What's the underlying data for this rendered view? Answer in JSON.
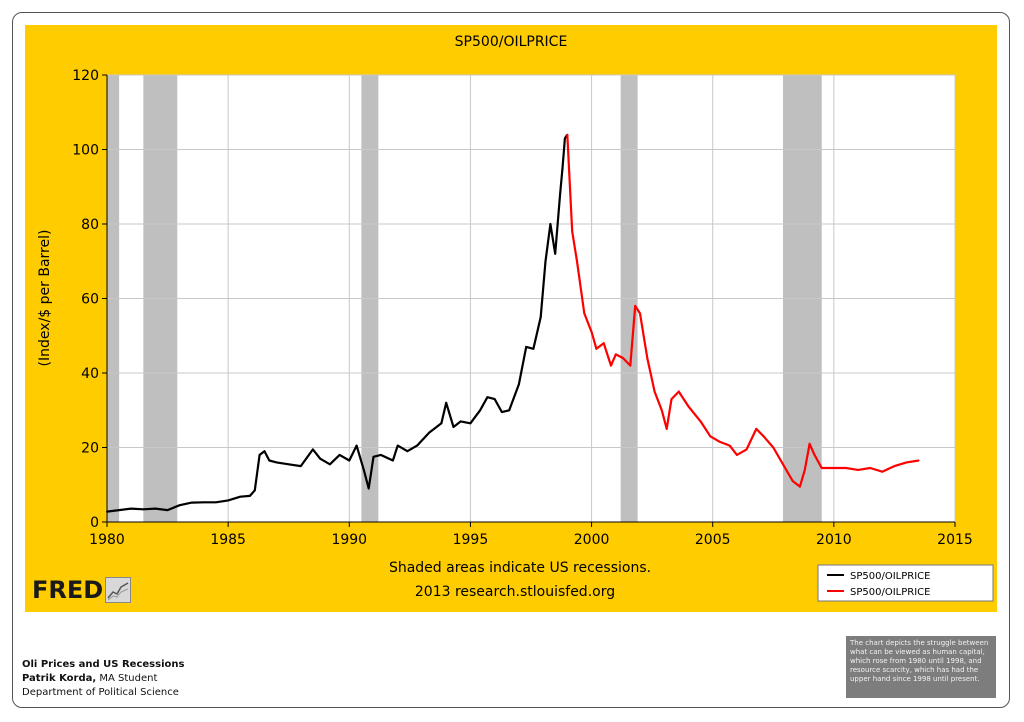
{
  "chart_data": {
    "type": "line",
    "title": "SP500/OILPRICE",
    "ylabel": "(Index/$ per Barrel)",
    "xlabel": "",
    "xlim": [
      1980,
      2015
    ],
    "ylim": [
      0,
      120
    ],
    "x_ticks": [
      "1980",
      "1985",
      "1990",
      "1995",
      "2000",
      "2005",
      "2010",
      "2015"
    ],
    "y_ticks": [
      "0",
      "20",
      "40",
      "60",
      "80",
      "100",
      "120"
    ],
    "grid": true,
    "recessions": [
      [
        1980.0,
        1980.5
      ],
      [
        1981.5,
        1982.9
      ],
      [
        1990.5,
        1991.2
      ],
      [
        2001.2,
        2001.9
      ],
      [
        2007.9,
        2009.5
      ]
    ],
    "note_line1": "Shaded areas indicate US recessions.",
    "note_line2": "2013 research.stlouisfed.org",
    "legend": [
      "SP500/OILPRICE",
      "SP500/OILPRICE"
    ],
    "series": [
      {
        "name": "SP500/OILPRICE",
        "color": "#000000",
        "x": [
          1980.0,
          1980.5,
          1981.0,
          1981.5,
          1982.0,
          1982.5,
          1983.0,
          1983.5,
          1984.0,
          1984.5,
          1985.0,
          1985.5,
          1985.9,
          1986.1,
          1986.3,
          1986.5,
          1986.7,
          1987.0,
          1987.5,
          1988.0,
          1988.5,
          1988.8,
          1989.2,
          1989.6,
          1990.0,
          1990.3,
          1990.6,
          1990.8,
          1991.0,
          1991.3,
          1991.8,
          1992.0,
          1992.4,
          1992.8,
          1993.3,
          1993.8,
          1994.0,
          1994.3,
          1994.6,
          1995.0,
          1995.4,
          1995.7,
          1996.0,
          1996.3,
          1996.6,
          1997.0,
          1997.3,
          1997.6,
          1997.9,
          1998.1,
          1998.3,
          1998.5,
          1998.7,
          1998.8,
          1998.9,
          1999.0
        ],
        "values": [
          2.8,
          3.2,
          3.6,
          3.4,
          3.6,
          3.2,
          4.5,
          5.2,
          5.3,
          5.3,
          5.8,
          6.8,
          7.0,
          8.5,
          18.0,
          19.0,
          16.5,
          16.0,
          15.5,
          15.0,
          19.5,
          17.0,
          15.5,
          18.0,
          16.5,
          20.5,
          14.0,
          9.0,
          17.5,
          18.0,
          16.5,
          20.5,
          19.0,
          20.5,
          24.0,
          26.5,
          32.0,
          25.5,
          27.0,
          26.5,
          30.0,
          33.5,
          33.0,
          29.5,
          30.0,
          37.0,
          47.0,
          46.5,
          55.0,
          70.0,
          80.0,
          72.0,
          88.0,
          95.0,
          103.0,
          104.0
        ]
      },
      {
        "name": "SP500/OILPRICE",
        "color": "#ff0000",
        "x": [
          1999.0,
          1999.2,
          1999.4,
          1999.7,
          2000.0,
          2000.2,
          2000.5,
          2000.8,
          2001.0,
          2001.3,
          2001.6,
          2001.8,
          2002.0,
          2002.3,
          2002.6,
          2002.9,
          2003.1,
          2003.3,
          2003.6,
          2004.0,
          2004.5,
          2004.9,
          2005.3,
          2005.7,
          2006.0,
          2006.4,
          2006.8,
          2007.1,
          2007.5,
          2007.9,
          2008.3,
          2008.6,
          2008.8,
          2009.0,
          2009.2,
          2009.5,
          2010.0,
          2010.5,
          2011.0,
          2011.5,
          2012.0,
          2012.5,
          2013.0,
          2013.5
        ],
        "values": [
          104.0,
          78.0,
          70.0,
          56.0,
          51.0,
          46.5,
          48.0,
          42.0,
          45.0,
          44.0,
          42.0,
          58.0,
          56.0,
          44.0,
          35.0,
          30.0,
          25.0,
          33.0,
          35.0,
          31.0,
          27.0,
          23.0,
          21.5,
          20.5,
          18.0,
          19.5,
          25.0,
          23.0,
          20.0,
          15.5,
          11.0,
          9.5,
          14.0,
          21.0,
          18.0,
          14.5,
          14.5,
          14.5,
          14.0,
          14.5,
          13.5,
          15.0,
          16.0,
          16.5
        ]
      }
    ]
  },
  "branding": {
    "fred_label": "FRED"
  },
  "footer": {
    "title": "Oli Prices and US Recessions",
    "author_name": "Patrik Korda,",
    "author_role": "MA Student",
    "department": "Department of Political Science"
  },
  "note": {
    "text": "The chart depicts the struggle between what can be viewed as human capital, which rose from 1980 until 1998, and resource scarcity, which has had the upper hand since 1998 until present."
  }
}
